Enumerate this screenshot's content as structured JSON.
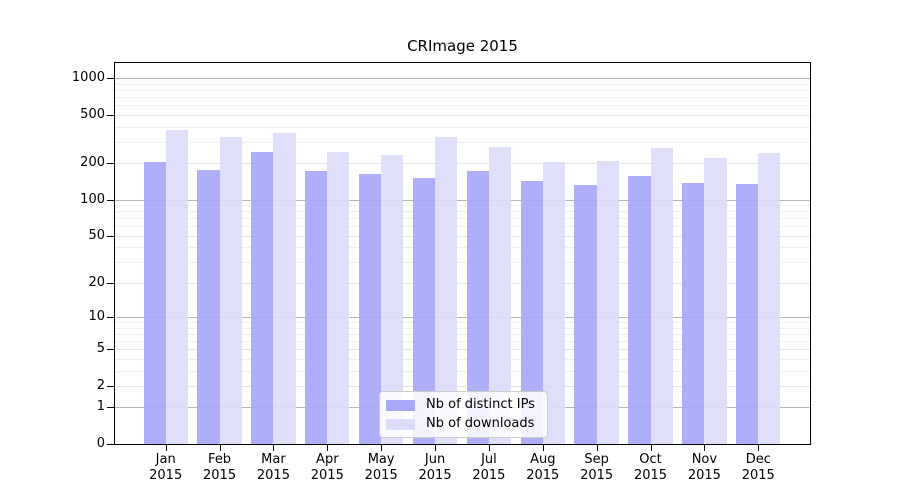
{
  "chart_data": {
    "type": "bar",
    "title": "CRImage 2015",
    "categories": [
      "Jan",
      "Feb",
      "Mar",
      "Apr",
      "May",
      "Jun",
      "Jul",
      "Aug",
      "Sep",
      "Oct",
      "Nov",
      "Dec"
    ],
    "category_year": "2015",
    "series": [
      {
        "name": "Nb of distinct IPs",
        "color": "#a8a8f8",
        "values": [
          205,
          175,
          248,
          172,
          162,
          152,
          173,
          143,
          132,
          156,
          138,
          135
        ]
      },
      {
        "name": "Nb of downloads",
        "color": "#dcdcf8",
        "values": [
          375,
          326,
          357,
          246,
          235,
          326,
          272,
          203,
          207,
          266,
          220,
          245
        ]
      }
    ],
    "y_ticks": [
      0,
      1,
      2,
      5,
      10,
      20,
      50,
      100,
      200,
      500,
      1000
    ],
    "y_scale": "log10(1+x)",
    "y_max": 1335,
    "grid": "on",
    "legend": {
      "position": "bottom-center",
      "entries": [
        "Nb of distinct IPs",
        "Nb of downloads"
      ]
    }
  },
  "colors": {
    "grid_decade": "#b6b6b6",
    "grid_labeled": "#e3e3e3",
    "grid_minor": "#efefef",
    "axis": "#000000",
    "background": "#ffffff"
  }
}
